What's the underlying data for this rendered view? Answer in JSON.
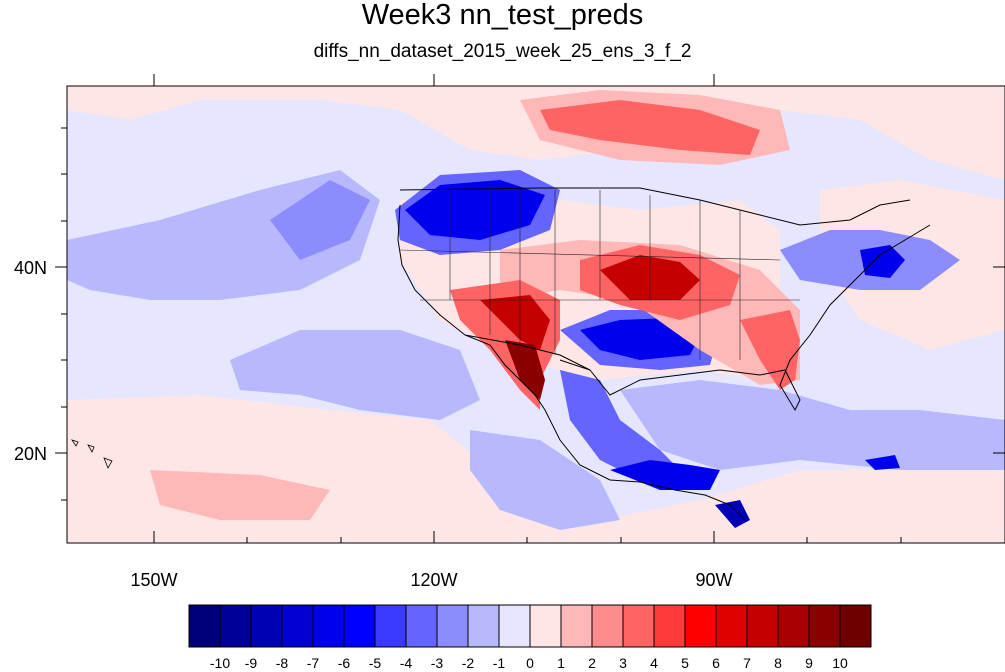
{
  "title": "Week3 nn_test_preds",
  "subtitle": "diffs_nn_dataset_2015_week_25_ens_3_f_2",
  "lat_labels": [
    "40N",
    "20N"
  ],
  "lon_labels": [
    "150W",
    "120W",
    "90W"
  ],
  "colorbar": {
    "labels": [
      "-10",
      "-9",
      "-8",
      "-7",
      "-6",
      "-5",
      "-4",
      "-3",
      "-2",
      "-1",
      "0",
      "1",
      "2",
      "3",
      "4",
      "5",
      "6",
      "7",
      "8",
      "9",
      "10"
    ],
    "colors": [
      "#00007a",
      "#000096",
      "#0000b4",
      "#0000d2",
      "#0000ee",
      "#0000ff",
      "#3a3aff",
      "#6464ff",
      "#8c8cff",
      "#b8b8ff",
      "#e6e6ff",
      "#ffe6e6",
      "#ffb8b8",
      "#ff8c8c",
      "#ff6464",
      "#ff3a3a",
      "#ff0000",
      "#e00000",
      "#c40000",
      "#a80000",
      "#8a0000",
      "#6e0000"
    ]
  },
  "field_colors": {
    "background": "#e6e6ff",
    "light_red": "#ffe6e6",
    "pink": "#ffb8b8",
    "red": "#ff6464",
    "strong_red": "#ff3a3a",
    "deep_red": "#c40000",
    "darkest_red": "#8a0000",
    "light_blue": "#b8b8ff",
    "mid_blue": "#8c8cff",
    "blue": "#6464ff",
    "strong_blue": "#3a3aff",
    "deep_blue": "#0000ee",
    "darkest_blue": "#0000b4"
  }
}
